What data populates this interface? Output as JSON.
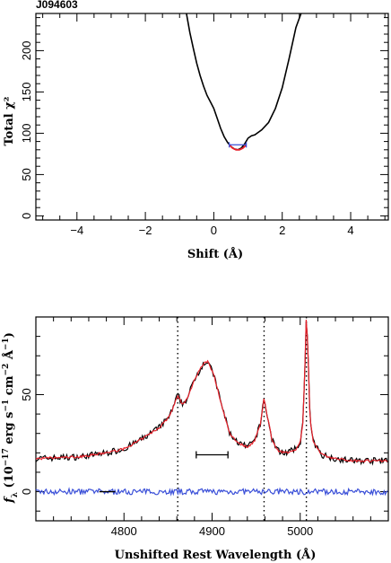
{
  "chart_data": [
    {
      "type": "line",
      "title": "J094603",
      "xlabel": "Shift (Å)",
      "ylabel": "Total χ²",
      "xlim": [
        -5.2,
        5.1
      ],
      "ylim": [
        -5,
        245
      ],
      "x_ticks": [
        -4,
        -2,
        0,
        2,
        4
      ],
      "x_tick_labels": [
        "−4",
        "−2",
        "0",
        "2",
        "4"
      ],
      "y_ticks": [
        0,
        50,
        100,
        150,
        200
      ],
      "y_tick_labels": [
        "0",
        "50",
        "100",
        "150",
        "200"
      ],
      "grid": false,
      "series": [
        {
          "color": "#000000",
          "x": [
            -0.8,
            -0.7,
            -0.6,
            -0.5,
            -0.4,
            -0.3,
            -0.2,
            -0.1,
            0.0,
            0.1,
            0.2,
            0.3,
            0.4,
            0.5,
            0.6,
            0.7,
            0.8,
            0.9,
            1.0,
            1.1,
            1.2,
            1.4,
            1.6,
            1.8,
            2.0,
            2.2,
            2.4,
            2.55
          ],
          "y": [
            245,
            222,
            203,
            185,
            170,
            157,
            146,
            138,
            130,
            118,
            106,
            96,
            89,
            84,
            81,
            80,
            82,
            87,
            94,
            97,
            98,
            104,
            113,
            130,
            155,
            190,
            228,
            245
          ]
        },
        {
          "color": "#e8202a",
          "x": [
            0.45,
            0.55,
            0.65,
            0.75,
            0.85,
            0.95
          ],
          "y": [
            86,
            82,
            80,
            80,
            82,
            86
          ]
        }
      ],
      "markers": [
        {
          "color": "#3a4fd8",
          "x0": 0.45,
          "x1": 0.95,
          "y": 86,
          "caps": true
        }
      ]
    },
    {
      "type": "line",
      "xlabel": "Unshifted Rest Wavelength (Å)",
      "ylabel_parts": [
        "f",
        "λ",
        " (10",
        "−17",
        " erg s",
        "−1",
        " cm",
        "−2",
        " Å",
        "−1",
        ")"
      ],
      "xlim": [
        4700,
        5100
      ],
      "ylim": [
        -15,
        90
      ],
      "x_ticks": [
        4800,
        4900,
        5000
      ],
      "x_tick_labels": [
        "4800",
        "4900",
        "5000"
      ],
      "x_minor_step": 20,
      "y_ticks": [
        0,
        50
      ],
      "y_tick_labels": [
        "0",
        "50"
      ],
      "y_minor_step": 10,
      "vlines": [
        4861,
        4959,
        5007
      ],
      "hbar": {
        "x0": 4882,
        "x1": 4918,
        "y": 19
      },
      "zero_marker": {
        "x0": 4772,
        "x1": 4790,
        "y": 0
      },
      "series_profile": [
        {
          "label": "observed",
          "color": "#000000"
        },
        {
          "label": "model",
          "color": "#e8202a"
        },
        {
          "label": "residual",
          "color": "#3a4fd8"
        }
      ],
      "anchors": {
        "x": [
          4700,
          4750,
          4780,
          4800,
          4820,
          4830,
          4840,
          4850,
          4855,
          4861,
          4866,
          4872,
          4880,
          4890,
          4895,
          4902,
          4910,
          4920,
          4930,
          4940,
          4948,
          4955,
          4959,
          4962,
          4968,
          4975,
          4985,
          4995,
          5000,
          5003,
          5005,
          5007,
          5009,
          5011,
          5015,
          5025,
          5040,
          5060,
          5080,
          5100
        ],
        "y": [
          17,
          18,
          20,
          22,
          27,
          30,
          33,
          38,
          42,
          50,
          45,
          48,
          58,
          66,
          67,
          60,
          46,
          30,
          25,
          23,
          26,
          35,
          49,
          40,
          27,
          21,
          20,
          22,
          25,
          35,
          60,
          92,
          70,
          38,
          25,
          19,
          17,
          16,
          16,
          16
        ]
      }
    }
  ]
}
